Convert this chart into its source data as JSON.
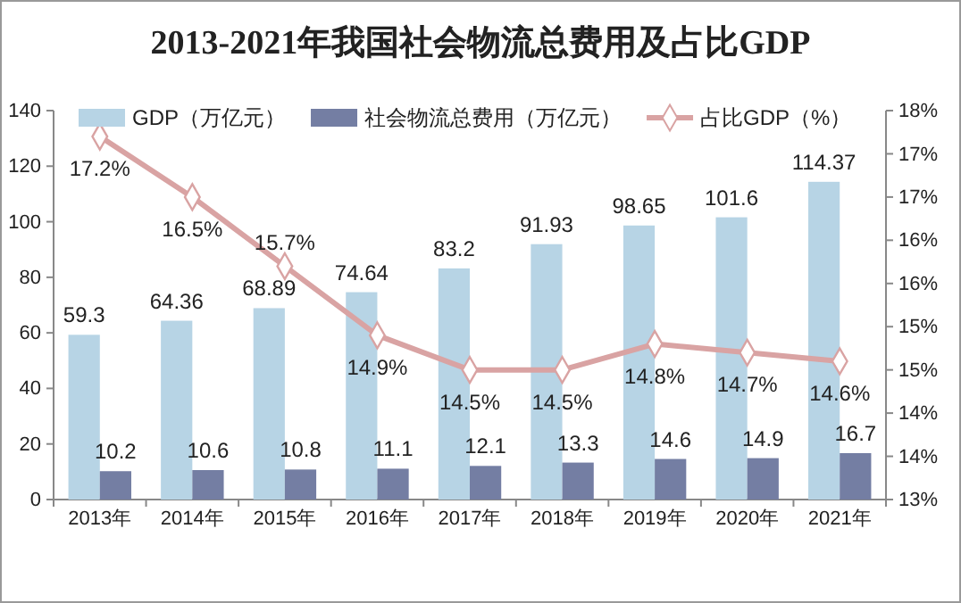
{
  "chart_data": {
    "type": "bar",
    "title": "2013-2021年我国社会物流总费用及占比GDP",
    "categories": [
      "2013年",
      "2014年",
      "2015年",
      "2016年",
      "2017年",
      "2018年",
      "2019年",
      "2020年",
      "2021年"
    ],
    "series": [
      {
        "name": "GDP（万亿元）",
        "color": "#b7d4e5",
        "values": [
          59.3,
          64.36,
          68.89,
          74.64,
          83.2,
          91.93,
          98.65,
          101.6,
          114.37
        ],
        "value_labels": [
          "59.3",
          "64.36",
          "68.89",
          "74.64",
          "83.2",
          "91.93",
          "98.65",
          "101.6",
          "114.37"
        ]
      },
      {
        "name": "社会物流总费用（万亿元）",
        "color": "#747ea3",
        "values": [
          10.2,
          10.6,
          10.8,
          11.1,
          12.1,
          13.3,
          14.6,
          14.9,
          16.7
        ],
        "value_labels": [
          "10.2",
          "10.6",
          "10.8",
          "11.1",
          "12.1",
          "13.3",
          "14.6",
          "14.9",
          "16.7"
        ]
      },
      {
        "name": "占比GDP（%）",
        "type": "line",
        "axis": "y2",
        "color": "#d9a3a3",
        "marker": "diamond",
        "values": [
          17.2,
          16.5,
          15.7,
          14.9,
          14.5,
          14.5,
          14.8,
          14.7,
          14.6
        ],
        "value_labels": [
          "17.2%",
          "16.5%",
          "15.7%",
          "14.9%",
          "14.5%",
          "14.5%",
          "14.8%",
          "14.7%",
          "14.6%"
        ]
      }
    ],
    "ylim": [
      0,
      140
    ],
    "yticks": [
      0,
      20,
      40,
      60,
      80,
      100,
      120,
      140
    ],
    "y2lim": [
      13,
      17.5
    ],
    "y2ticks": [
      {
        "value": 13,
        "label": "13%"
      },
      {
        "value": 13.5,
        "label": "14%"
      },
      {
        "value": 14,
        "label": "14%"
      },
      {
        "value": 14.5,
        "label": "15%"
      },
      {
        "value": 15,
        "label": "15%"
      },
      {
        "value": 15.5,
        "label": "16%"
      },
      {
        "value": 16,
        "label": "16%"
      },
      {
        "value": 16.5,
        "label": "17%"
      },
      {
        "value": 17,
        "label": "17%"
      },
      {
        "value": 17.5,
        "label": "18%"
      }
    ],
    "grid": false,
    "legend": "top"
  }
}
